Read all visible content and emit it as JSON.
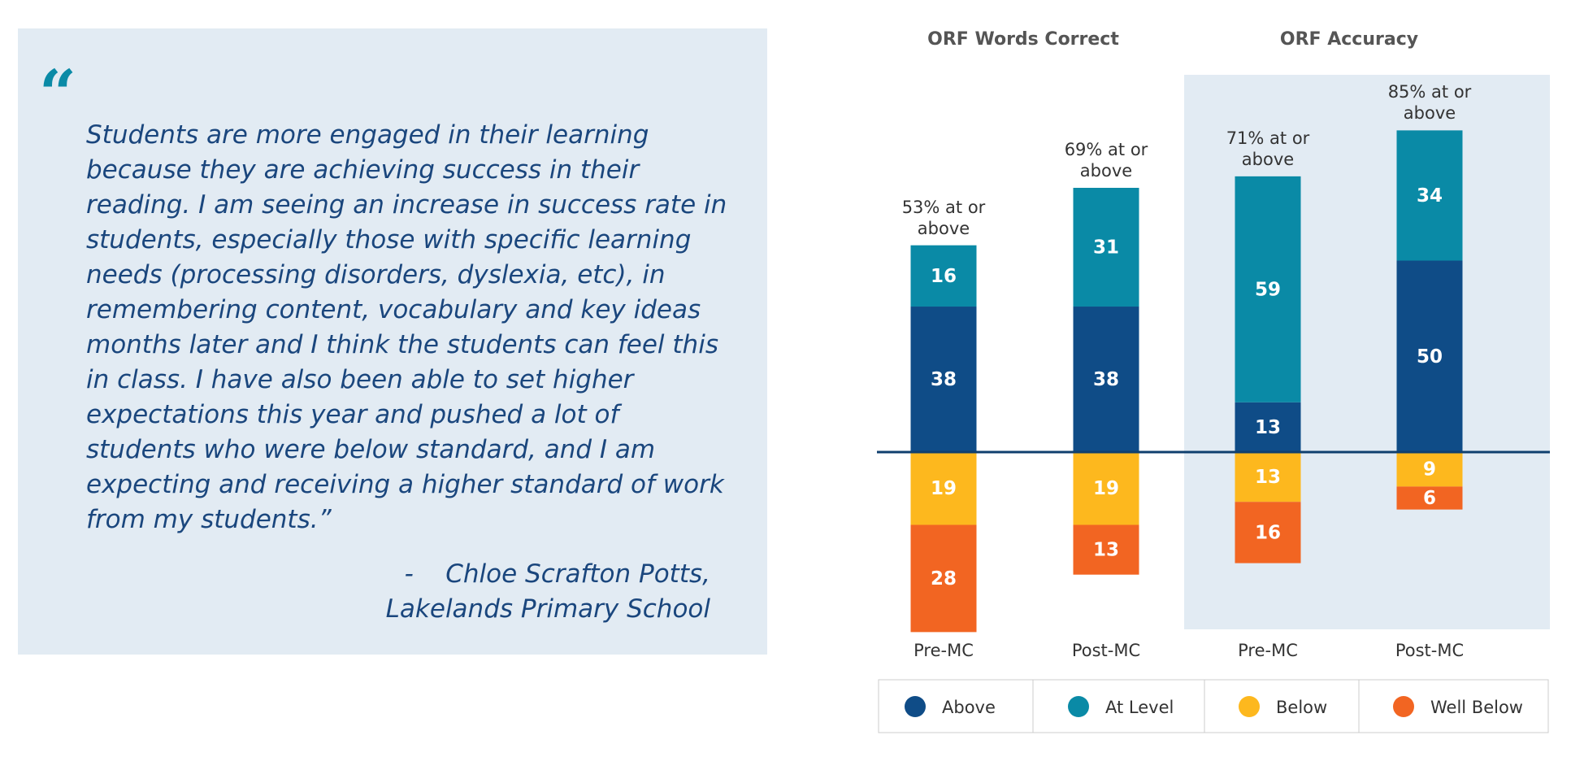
{
  "quote": {
    "open_quote": "“",
    "text": "Students are more engaged in their learning because they are achieving success in their reading. I am seeing an increase in success rate in students, especially those with specific learning needs (processing disorders, dyslexia, etc), in remembering content, vocabulary and key ideas months later and I think the students can feel this in class. I have also been able to set higher expectations this year and pushed a lot of students who were below standard, and I am expecting and receiving a higher standard of work from my students.”",
    "attribution": [
      "-    Chloe Scrafton Potts,",
      "Lakelands Primary School"
    ]
  },
  "chart_data": {
    "type": "bar",
    "stacked": true,
    "groups": [
      "ORF Words Correct",
      "ORF Accuracy"
    ],
    "categories": [
      "Pre-MC",
      "Post-MC",
      "Pre-MC",
      "Post-MC"
    ],
    "annotations": [
      "53% at or above",
      "69% at or above",
      "71% at or above",
      "85% at or above"
    ],
    "series": [
      {
        "name": "Above",
        "color": "#0f4c87",
        "values": [
          38,
          38,
          13,
          50
        ]
      },
      {
        "name": "At Level",
        "color": "#0a8aa6",
        "values": [
          16,
          31,
          59,
          34
        ]
      },
      {
        "name": "Below",
        "color": "#fdb81e",
        "values": [
          19,
          19,
          13,
          9
        ]
      },
      {
        "name": "Well Below",
        "color": "#f26522",
        "values": [
          28,
          13,
          16,
          6
        ]
      }
    ],
    "legend": "bottom"
  }
}
